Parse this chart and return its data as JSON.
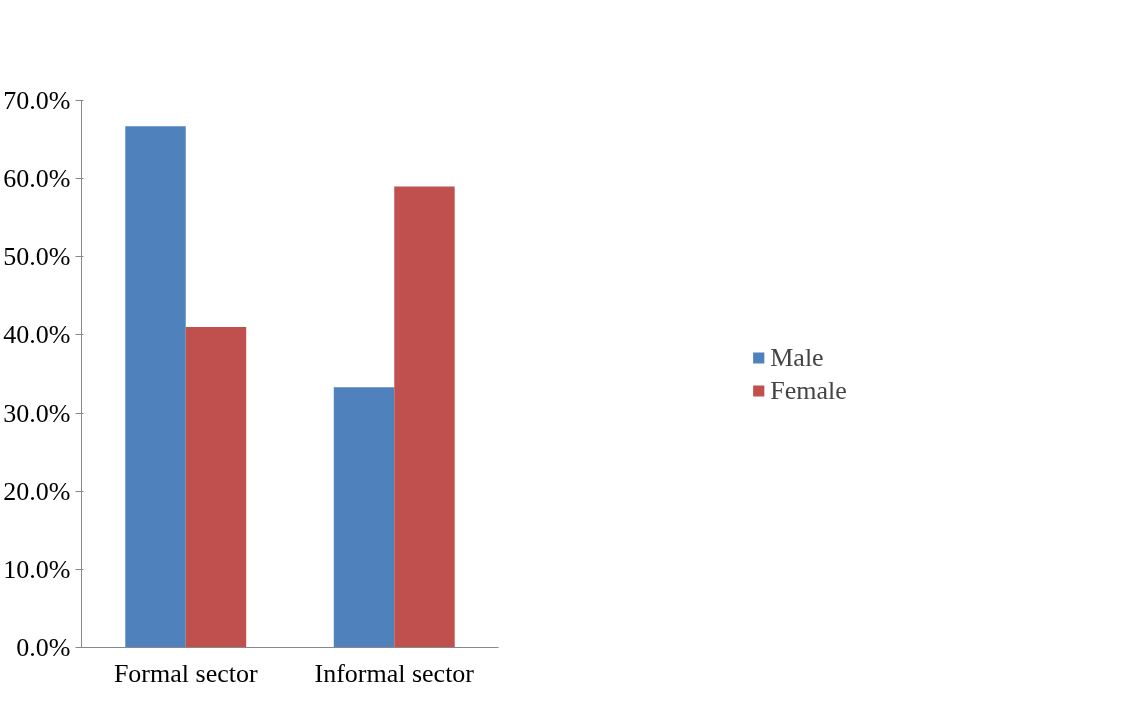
{
  "chart_data": {
    "type": "bar",
    "categories": [
      "Formal sector",
      "Informal sector"
    ],
    "series": [
      {
        "name": "Male",
        "color": "#4f81bd",
        "values": [
          66.7,
          33.3
        ]
      },
      {
        "name": "Female",
        "color": "#c0504d",
        "values": [
          41.0,
          59.0
        ]
      }
    ],
    "ylim": [
      0,
      70
    ],
    "yticks": [
      {
        "value": 0,
        "label": "0.0%"
      },
      {
        "value": 10,
        "label": "10.0%"
      },
      {
        "value": 20,
        "label": "20.0%"
      },
      {
        "value": 30,
        "label": "30.0%"
      },
      {
        "value": 40,
        "label": "40.0%"
      },
      {
        "value": 50,
        "label": "50.0%"
      },
      {
        "value": 60,
        "label": "60.0%"
      },
      {
        "value": 70,
        "label": "70.0%"
      }
    ],
    "grid": false,
    "legend": "right"
  }
}
